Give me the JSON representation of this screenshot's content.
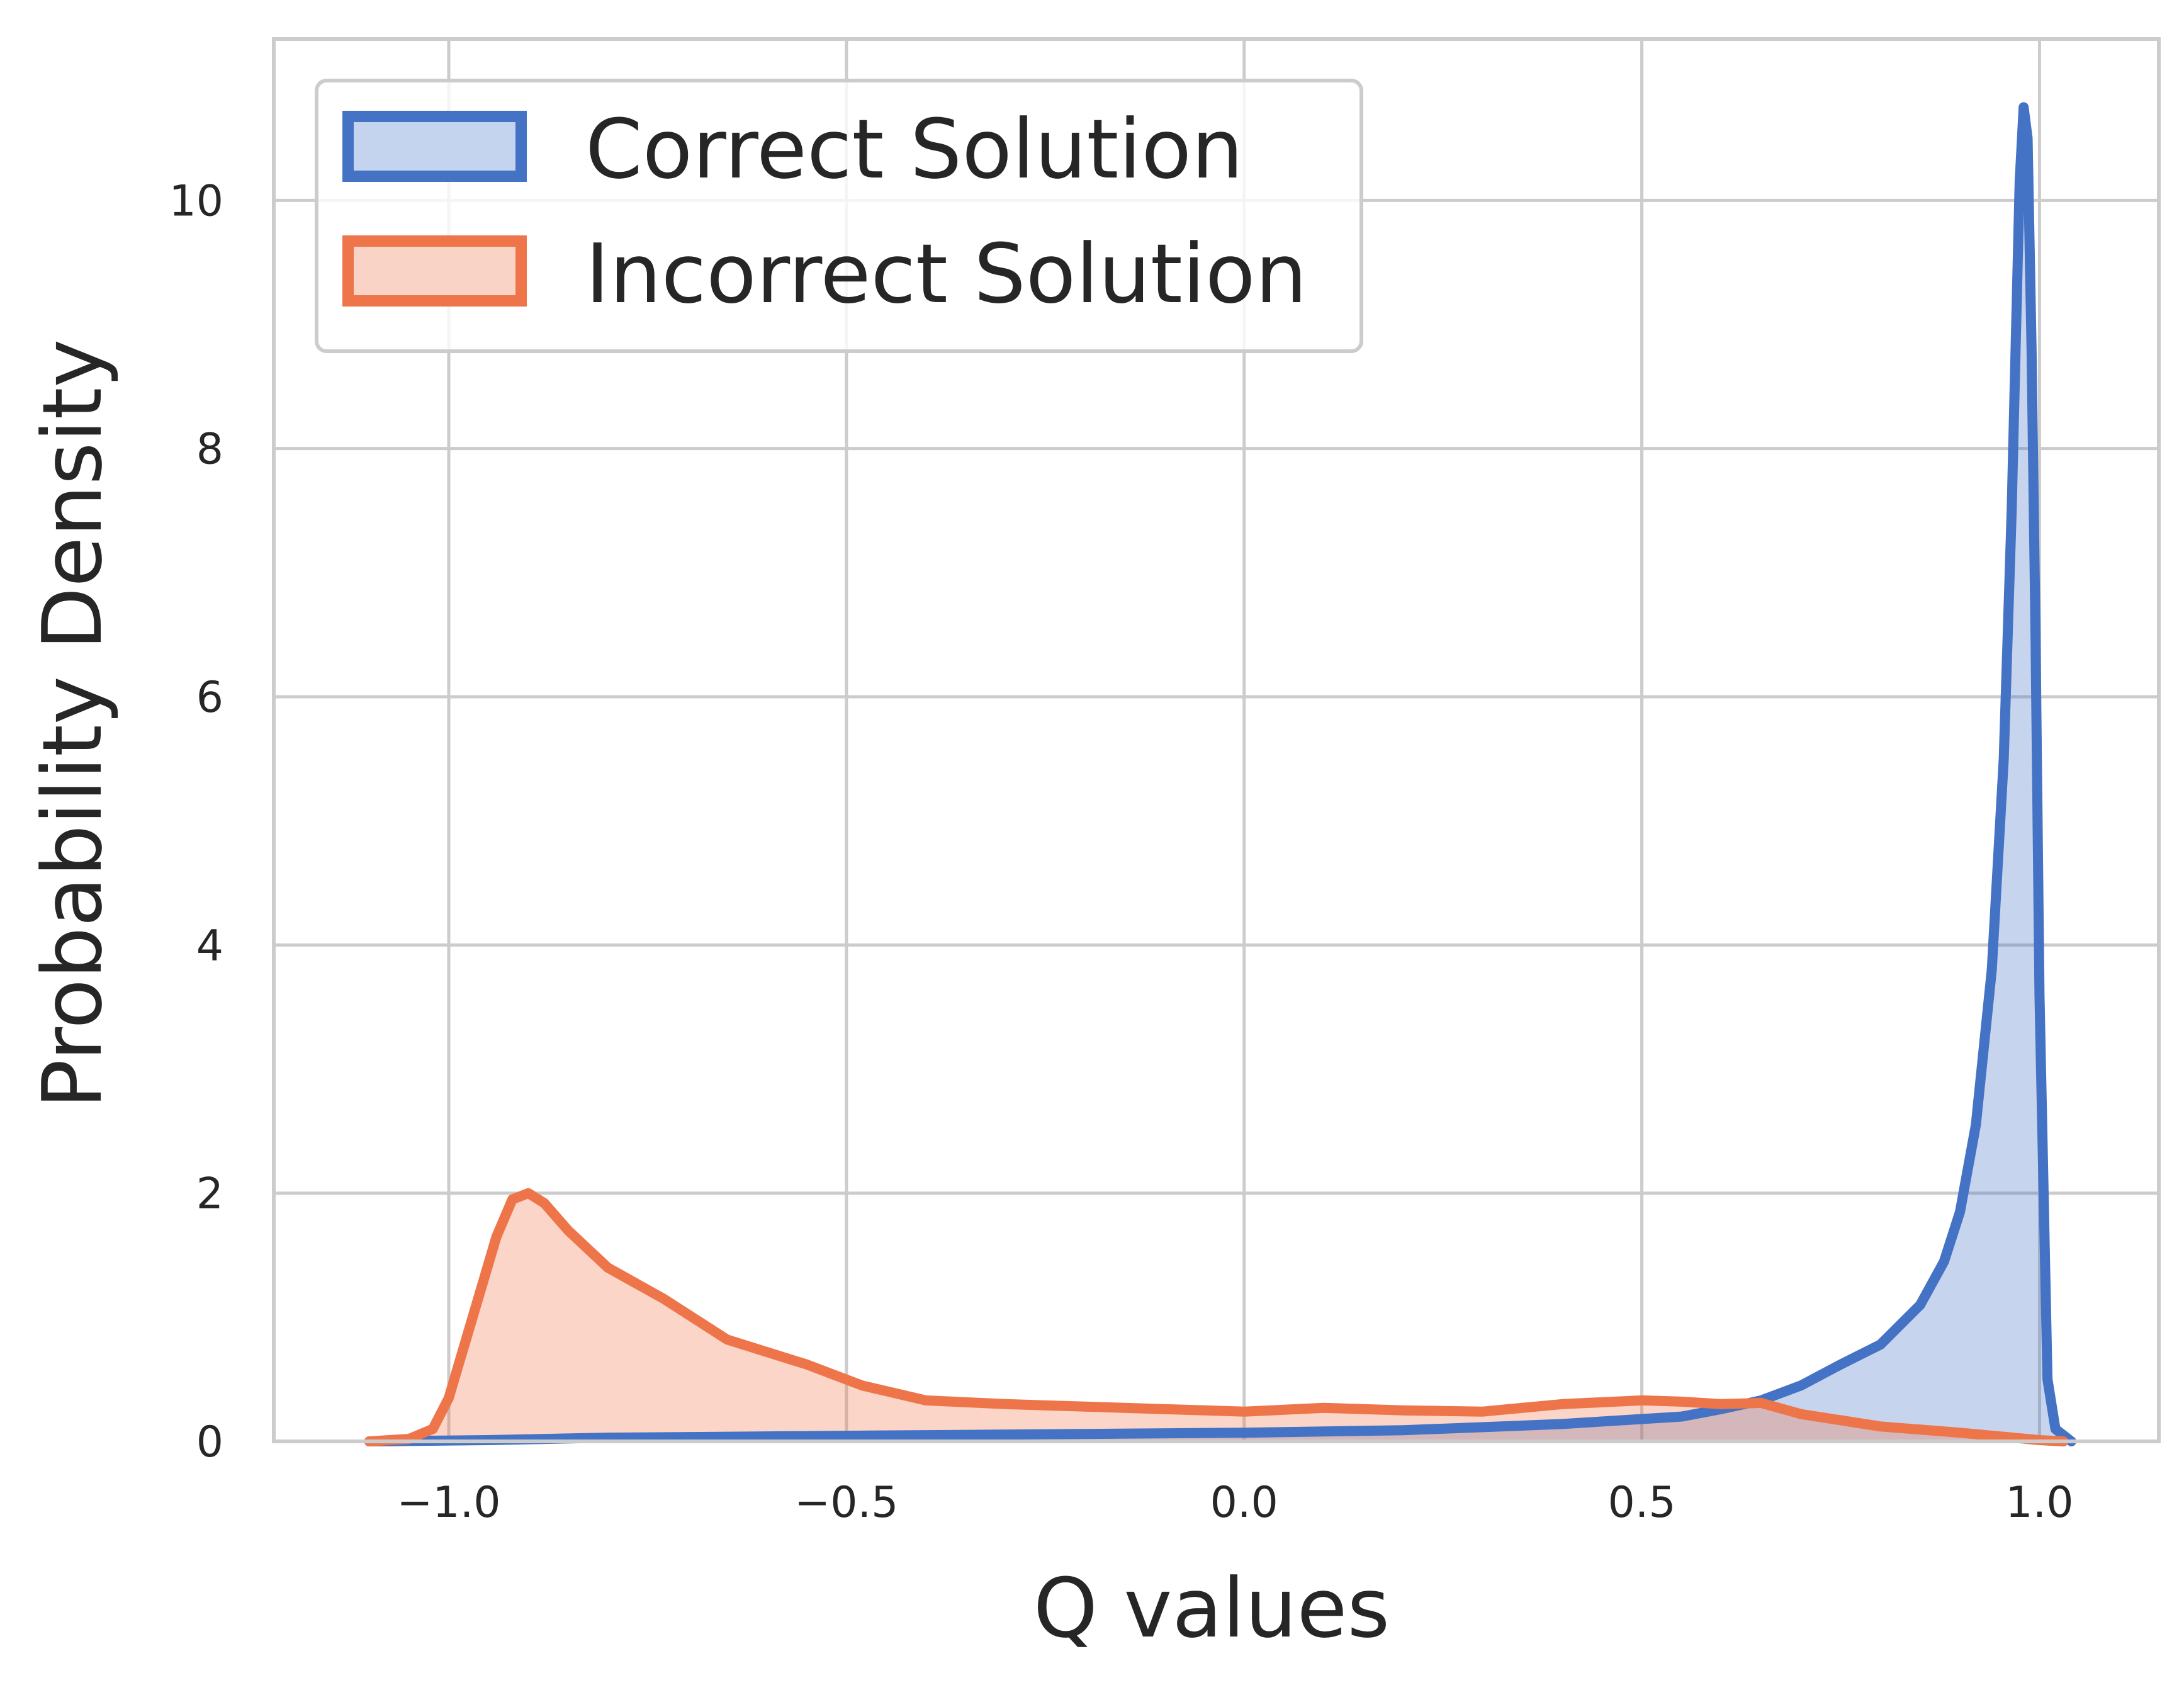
{
  "chart_data": {
    "type": "area",
    "title": "",
    "xlabel": "Q values",
    "ylabel": "Probability Density",
    "xlim": [
      -1.22,
      1.15
    ],
    "ylim": [
      0,
      11.3
    ],
    "grid": true,
    "legend_position": "top-left",
    "x_ticks": [
      -1.0,
      -0.5,
      0.0,
      0.5,
      1.0
    ],
    "x_tick_labels": [
      "−1.0",
      "−0.5",
      "0.0",
      "0.5",
      "1.0"
    ],
    "y_ticks": [
      0,
      2,
      4,
      6,
      8,
      10
    ],
    "y_tick_labels": [
      "0",
      "2",
      "4",
      "6",
      "8",
      "10"
    ],
    "series": [
      {
        "name": "Correct Solution",
        "color": "#4472c4",
        "fill_color": "#c5d4ee",
        "x": [
          -1.1,
          -0.95,
          -0.8,
          -0.6,
          -0.4,
          -0.2,
          0.0,
          0.2,
          0.4,
          0.5,
          0.55,
          0.6,
          0.65,
          0.7,
          0.75,
          0.8,
          0.85,
          0.88,
          0.9,
          0.92,
          0.94,
          0.955,
          0.965,
          0.975,
          0.98,
          0.985,
          0.99,
          0.995,
          1.0,
          1.01,
          1.02,
          1.04
        ],
        "y": [
          0.0,
          0.01,
          0.03,
          0.04,
          0.05,
          0.06,
          0.07,
          0.09,
          0.14,
          0.18,
          0.2,
          0.26,
          0.33,
          0.45,
          0.62,
          0.78,
          1.1,
          1.45,
          1.85,
          2.55,
          3.8,
          5.5,
          7.5,
          10.15,
          10.75,
          10.5,
          8.8,
          6.5,
          3.6,
          0.5,
          0.1,
          0.0
        ]
      },
      {
        "name": "Incorrect Solution",
        "color": "#ee7549",
        "fill_color": "#f9d3c6",
        "x": [
          -1.1,
          -1.05,
          -1.02,
          -1.0,
          -0.97,
          -0.94,
          -0.92,
          -0.9,
          -0.88,
          -0.85,
          -0.8,
          -0.73,
          -0.65,
          -0.55,
          -0.48,
          -0.4,
          -0.3,
          -0.2,
          -0.1,
          0.0,
          0.1,
          0.2,
          0.3,
          0.4,
          0.5,
          0.55,
          0.6,
          0.65,
          0.7,
          0.8,
          0.9,
          1.0,
          1.03
        ],
        "y": [
          0.0,
          0.02,
          0.1,
          0.35,
          1.0,
          1.65,
          1.95,
          2.0,
          1.92,
          1.7,
          1.4,
          1.15,
          0.82,
          0.62,
          0.45,
          0.33,
          0.3,
          0.28,
          0.26,
          0.24,
          0.27,
          0.25,
          0.24,
          0.3,
          0.33,
          0.32,
          0.3,
          0.31,
          0.22,
          0.12,
          0.07,
          0.01,
          0.0
        ]
      }
    ]
  }
}
